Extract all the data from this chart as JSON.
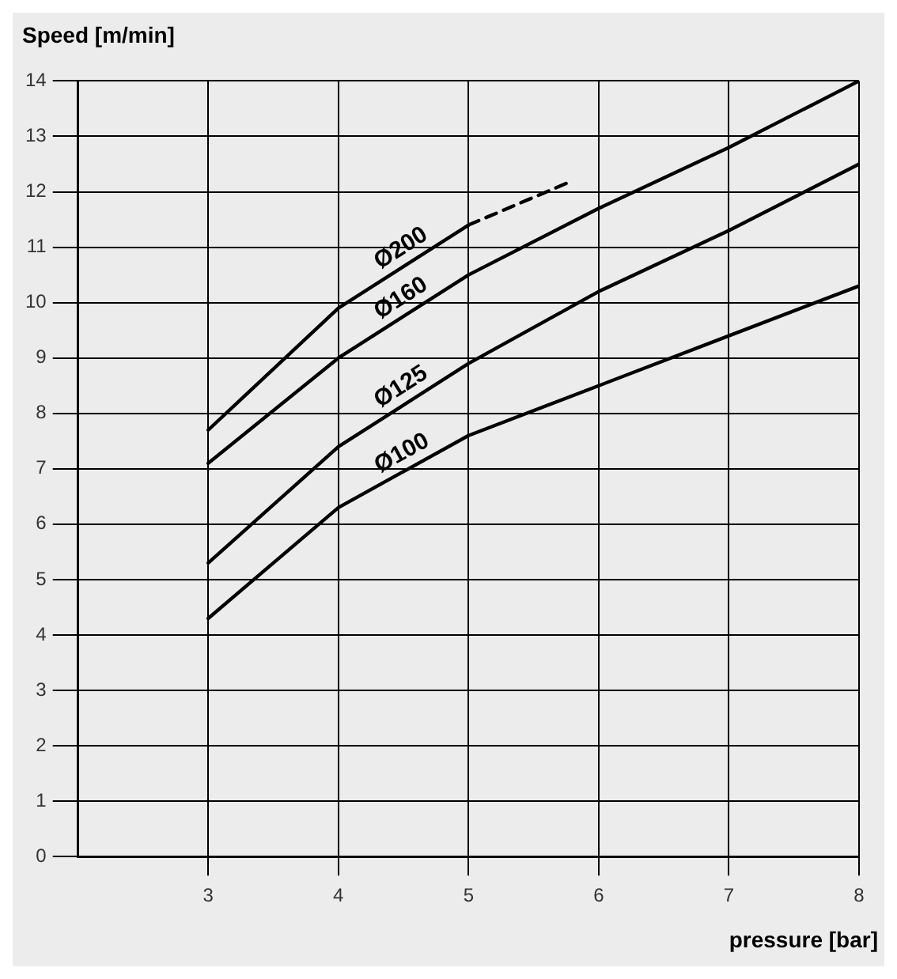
{
  "chart_data": {
    "type": "line",
    "xlabel": "pressure [bar]",
    "ylabel": "Speed [m/min]",
    "x": [
      3,
      4,
      5,
      6,
      7,
      8
    ],
    "series": [
      {
        "name": "Ø200",
        "color": "#000000",
        "x": [
          3,
          4,
          5
        ],
        "values": [
          7.7,
          9.9,
          11.4
        ]
      },
      {
        "color": "#000000",
        "line_style": "dashed",
        "x": [
          5,
          5.8
        ],
        "values": [
          11.4,
          12.2
        ]
      },
      {
        "name": "Ø160",
        "color": "#000000",
        "values": [
          7.1,
          9.0,
          10.5,
          11.7,
          12.8,
          14.0
        ]
      },
      {
        "name": "Ø125",
        "color": "#000000",
        "values": [
          5.3,
          7.4,
          8.9,
          10.2,
          11.3,
          12.5
        ]
      },
      {
        "name": "Ø100",
        "color": "#000000",
        "values": [
          4.3,
          6.3,
          7.6,
          8.5,
          9.4,
          10.3
        ]
      }
    ],
    "xlim": [
      2,
      8
    ],
    "xticks": [
      3,
      4,
      5,
      6,
      7,
      8
    ],
    "ylim": [
      0,
      14
    ],
    "yticks": [
      0,
      1,
      2,
      3,
      4,
      5,
      6,
      7,
      8,
      9,
      10,
      11,
      12,
      13,
      14
    ],
    "grid": true,
    "legend": false,
    "marker": "none",
    "line_style": "solid"
  }
}
